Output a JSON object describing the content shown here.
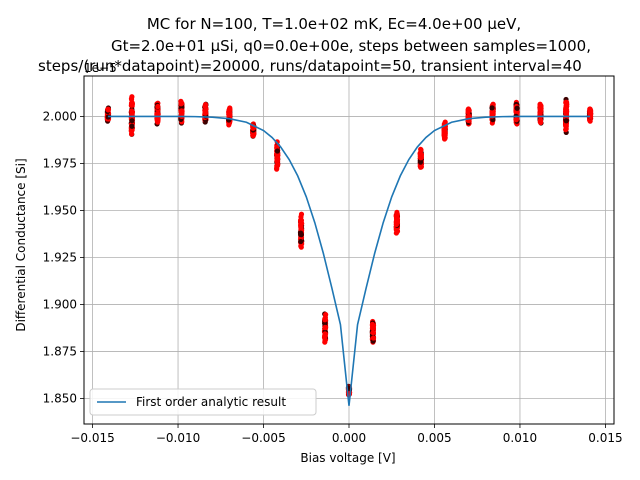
{
  "chart_data": {
    "type": "scatter",
    "title_lines": [
      "MC for N=100, T=1.0e+02 mK, Ec=4.0e+00 μeV,",
      "Gt=2.0e+01 μSi, q0=0.0e+00e, steps between samples=1000,",
      "steps/(run*datapoint)=20000, runs/datapoint=50, transient interval=40"
    ],
    "xlabel": "Bias voltage [V]",
    "ylabel": "Differential Conductance [Si]",
    "offset_label": "1e−5",
    "xlim": [
      -0.0155,
      0.0155
    ],
    "ylim": [
      1.8365,
      2.0215
    ],
    "xticks": [
      -0.015,
      -0.01,
      -0.005,
      0.0,
      0.005,
      0.01,
      0.015
    ],
    "xtick_labels": [
      "−0.015",
      "−0.010",
      "−0.005",
      "0.000",
      "0.005",
      "0.010",
      "0.015"
    ],
    "yticks": [
      1.85,
      1.875,
      1.9,
      1.925,
      1.95,
      1.975,
      2.0
    ],
    "ytick_labels": [
      "1.850",
      "1.875",
      "1.900",
      "1.925",
      "1.950",
      "1.975",
      "2.000"
    ],
    "grid": true,
    "legend_position": "lower-left",
    "series": [
      {
        "name": "First order analytic result",
        "kind": "line",
        "color": "#1f77b4",
        "x": [
          -0.0141,
          -0.012,
          -0.01,
          -0.009,
          -0.008,
          -0.007,
          -0.006,
          -0.005,
          -0.0045,
          -0.004,
          -0.0035,
          -0.003,
          -0.0025,
          -0.002,
          -0.0015,
          -0.001,
          -0.0005,
          0.0,
          0.0005,
          0.001,
          0.0015,
          0.002,
          0.0025,
          0.003,
          0.0035,
          0.004,
          0.0045,
          0.005,
          0.006,
          0.007,
          0.008,
          0.009,
          0.01,
          0.012,
          0.0141
        ],
        "y": [
          2.0,
          2.0,
          2.0,
          1.9999,
          1.9996,
          1.9988,
          1.9969,
          1.9925,
          1.9888,
          1.9838,
          1.9771,
          1.9684,
          1.9573,
          1.9435,
          1.9272,
          1.9087,
          1.8893,
          1.8462,
          1.8893,
          1.9087,
          1.9272,
          1.9435,
          1.9573,
          1.9684,
          1.9771,
          1.9838,
          1.9888,
          1.9925,
          1.9969,
          1.9988,
          1.9996,
          1.9999,
          2.0,
          2.0,
          2.0
        ]
      },
      {
        "name": "Monte Carlo samples",
        "kind": "scatter",
        "color": "#ff0000",
        "dark_color": "#3a0000",
        "groups": [
          {
            "x": -0.0141,
            "ymin": 1.9975,
            "ymax": 2.0045
          },
          {
            "x": -0.0127,
            "ymin": 1.9905,
            "ymax": 2.0105
          },
          {
            "x": -0.0112,
            "ymin": 1.996,
            "ymax": 2.007
          },
          {
            "x": -0.0098,
            "ymin": 1.9965,
            "ymax": 2.008
          },
          {
            "x": -0.0084,
            "ymin": 1.997,
            "ymax": 2.0065
          },
          {
            "x": -0.007,
            "ymin": 1.9955,
            "ymax": 2.0045
          },
          {
            "x": -0.0056,
            "ymin": 1.9895,
            "ymax": 1.996
          },
          {
            "x": -0.0042,
            "ymin": 1.972,
            "ymax": 1.9865
          },
          {
            "x": -0.0028,
            "ymin": 1.9305,
            "ymax": 1.948
          },
          {
            "x": -0.0014,
            "ymin": 1.88,
            "ymax": 1.895
          },
          {
            "x": 0.0,
            "ymin": 1.852,
            "ymax": 1.8565
          },
          {
            "x": 0.0014,
            "ymin": 1.88,
            "ymax": 1.891
          },
          {
            "x": 0.0028,
            "ymin": 1.938,
            "ymax": 1.949
          },
          {
            "x": 0.0042,
            "ymin": 1.973,
            "ymax": 1.9825
          },
          {
            "x": 0.0056,
            "ymin": 1.988,
            "ymax": 1.997
          },
          {
            "x": 0.007,
            "ymin": 1.996,
            "ymax": 2.004
          },
          {
            "x": 0.0084,
            "ymin": 1.9965,
            "ymax": 2.0065
          },
          {
            "x": 0.0098,
            "ymin": 1.996,
            "ymax": 2.0075
          },
          {
            "x": 0.0112,
            "ymin": 1.9965,
            "ymax": 2.0065
          },
          {
            "x": 0.0127,
            "ymin": 1.9915,
            "ymax": 2.009
          },
          {
            "x": 0.0141,
            "ymin": 1.9975,
            "ymax": 2.004
          }
        ]
      }
    ]
  }
}
